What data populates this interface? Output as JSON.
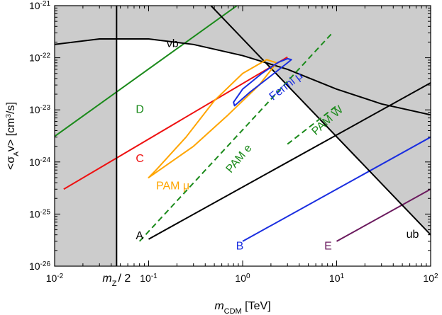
{
  "chart_data": {
    "type": "line",
    "xscale": "log",
    "yscale": "log",
    "xlim": [
      0.01,
      100
    ],
    "ylim": [
      1e-26,
      1e-21
    ],
    "xlabel": {
      "main": "m",
      "sub": "CDM",
      "unit": " [TeV]"
    },
    "ylabel": {
      "main": "<σ",
      "sub": "A",
      "mid": "v> [cm",
      "sup": "3",
      "end": "/s]"
    },
    "x_ticks": [
      {
        "value": 0.01,
        "base": "10",
        "exp": "-2"
      },
      {
        "value": 0.1,
        "base": "10",
        "exp": "-1"
      },
      {
        "value": 1,
        "base": "10",
        "exp": "0"
      },
      {
        "value": 10,
        "base": "10",
        "exp": "1"
      },
      {
        "value": 100,
        "base": "10",
        "exp": "2"
      }
    ],
    "y_ticks": [
      {
        "value": 1e-26,
        "base": "10",
        "exp": "-26"
      },
      {
        "value": 1e-25,
        "base": "10",
        "exp": "-25"
      },
      {
        "value": 1e-24,
        "base": "10",
        "exp": "-24"
      },
      {
        "value": 1e-23,
        "base": "10",
        "exp": "-23"
      },
      {
        "value": 1e-22,
        "base": "10",
        "exp": "-22"
      },
      {
        "value": 1e-21,
        "base": "10",
        "exp": "-21"
      }
    ],
    "mz_marker": {
      "x": 0.0456,
      "label_main": "m",
      "label_sub": "Z",
      "label_rest": "/ 2"
    },
    "colors": {
      "shade": "#cccccc",
      "black": "#000000",
      "green": "#1a8a1a",
      "red": "#ee1111",
      "blue": "#1a2ee0",
      "purple": "#6b1a5e",
      "orange": "#ffa500"
    },
    "series": [
      {
        "name": "A",
        "color": "#000000",
        "dash": false,
        "points": [
          [
            0.1,
            3.3e-26
          ],
          [
            100,
            3.3e-23
          ]
        ]
      },
      {
        "name": "B",
        "color": "#1a2ee0",
        "dash": false,
        "points": [
          [
            1,
            3e-26
          ],
          [
            100,
            3e-24
          ]
        ]
      },
      {
        "name": "C",
        "color": "#ee1111",
        "dash": false,
        "points": [
          [
            0.0125,
            3e-25
          ],
          [
            3,
            1.03e-22
          ]
        ]
      },
      {
        "name": "D",
        "color": "#1a8a1a",
        "dash": false,
        "points": [
          [
            0.01,
            3.1e-24
          ],
          [
            0.87,
            1e-21
          ]
        ]
      },
      {
        "name": "E",
        "color": "#6b1a5e",
        "dash": false,
        "points": [
          [
            10,
            3e-26
          ],
          [
            100,
            3e-25
          ]
        ]
      },
      {
        "name": "ub",
        "color": "#000000",
        "dash": false,
        "points": [
          [
            0.46,
            1e-21
          ],
          [
            100,
            4e-26
          ]
        ]
      },
      {
        "name": "νb",
        "color": "#000000",
        "dash": false,
        "points": [
          [
            0.01,
            1.8e-22
          ],
          [
            0.03,
            2.3e-22
          ],
          [
            0.1,
            2.3e-22
          ],
          [
            0.3,
            1.8e-22
          ],
          [
            1,
            1.1e-22
          ],
          [
            3,
            6e-23
          ],
          [
            10,
            2.5e-23
          ],
          [
            30,
            1.3e-23
          ],
          [
            100,
            8e-24
          ]
        ]
      },
      {
        "name": "PAM e",
        "color": "#1a8a1a",
        "dash": true,
        "points": [
          [
            0.08,
            3e-26
          ],
          [
            9,
            3e-22
          ]
        ]
      },
      {
        "name": "PAM W",
        "color": "#1a8a1a",
        "dash": true,
        "points": [
          [
            3,
            2.2e-24
          ],
          [
            10,
            1.2e-23
          ]
        ]
      },
      {
        "name": "PAM μ",
        "color": "#ffa500",
        "dash": false,
        "closed": true,
        "points": [
          [
            0.1,
            5e-25
          ],
          [
            0.3,
            2e-24
          ],
          [
            0.7,
            8e-24
          ],
          [
            1.5,
            3e-23
          ],
          [
            2.3,
            8e-23
          ],
          [
            1.8,
            9.2e-23
          ],
          [
            1.0,
            5e-23
          ],
          [
            0.5,
            1.5e-23
          ],
          [
            0.25,
            3e-24
          ],
          [
            0.12,
            7e-25
          ]
        ]
      },
      {
        "name": "Fermi μ",
        "color": "#1a2ee0",
        "dash": false,
        "closed": true,
        "points": [
          [
            0.82,
            1.2e-23
          ],
          [
            1.2,
            2.2e-23
          ],
          [
            2,
            4.5e-23
          ],
          [
            3,
            8e-23
          ],
          [
            3.3,
            9.2e-23
          ],
          [
            3.0,
            9.6e-23
          ],
          [
            2.4,
            8.2e-23
          ],
          [
            1.6,
            5e-23
          ],
          [
            1.0,
            2.5e-23
          ],
          [
            0.8,
            1.4e-23
          ]
        ]
      }
    ],
    "annotations": [
      {
        "text": "A",
        "x": 0.073,
        "y": 3.3e-26,
        "color": "#000000",
        "rotate": 0
      },
      {
        "text": "B",
        "x": 0.85,
        "y": 2.1e-26,
        "color": "#1a2ee0",
        "rotate": 0
      },
      {
        "text": "C",
        "x": 0.073,
        "y": 1e-24,
        "color": "#ee1111",
        "rotate": 0
      },
      {
        "text": "D",
        "x": 0.073,
        "y": 8.8e-24,
        "color": "#1a8a1a",
        "rotate": 0
      },
      {
        "text": "E",
        "x": 7.4,
        "y": 2.1e-26,
        "color": "#6b1a5e",
        "rotate": 0
      },
      {
        "text": "νb",
        "x": 0.155,
        "y": 1.6e-22,
        "color": "#000000",
        "rotate": 0
      },
      {
        "text": "ub",
        "x": 55,
        "y": 3.5e-26,
        "color": "#000000",
        "rotate": 0
      },
      {
        "text": "PAM μ",
        "x": 0.12,
        "y": 3e-25,
        "color": "#ffa500",
        "rotate": 0
      },
      {
        "text": "PAM e",
        "x": 0.75,
        "y": 6e-25,
        "color": "#1a8a1a",
        "rotate": -50
      },
      {
        "text": "PAM W",
        "x": 6.0,
        "y": 3.2e-24,
        "color": "#1a8a1a",
        "rotate": -42
      },
      {
        "text": "Fermi μ",
        "x": 2.1,
        "y": 1.5e-23,
        "color": "#1a2ee0",
        "rotate": -38
      }
    ]
  }
}
